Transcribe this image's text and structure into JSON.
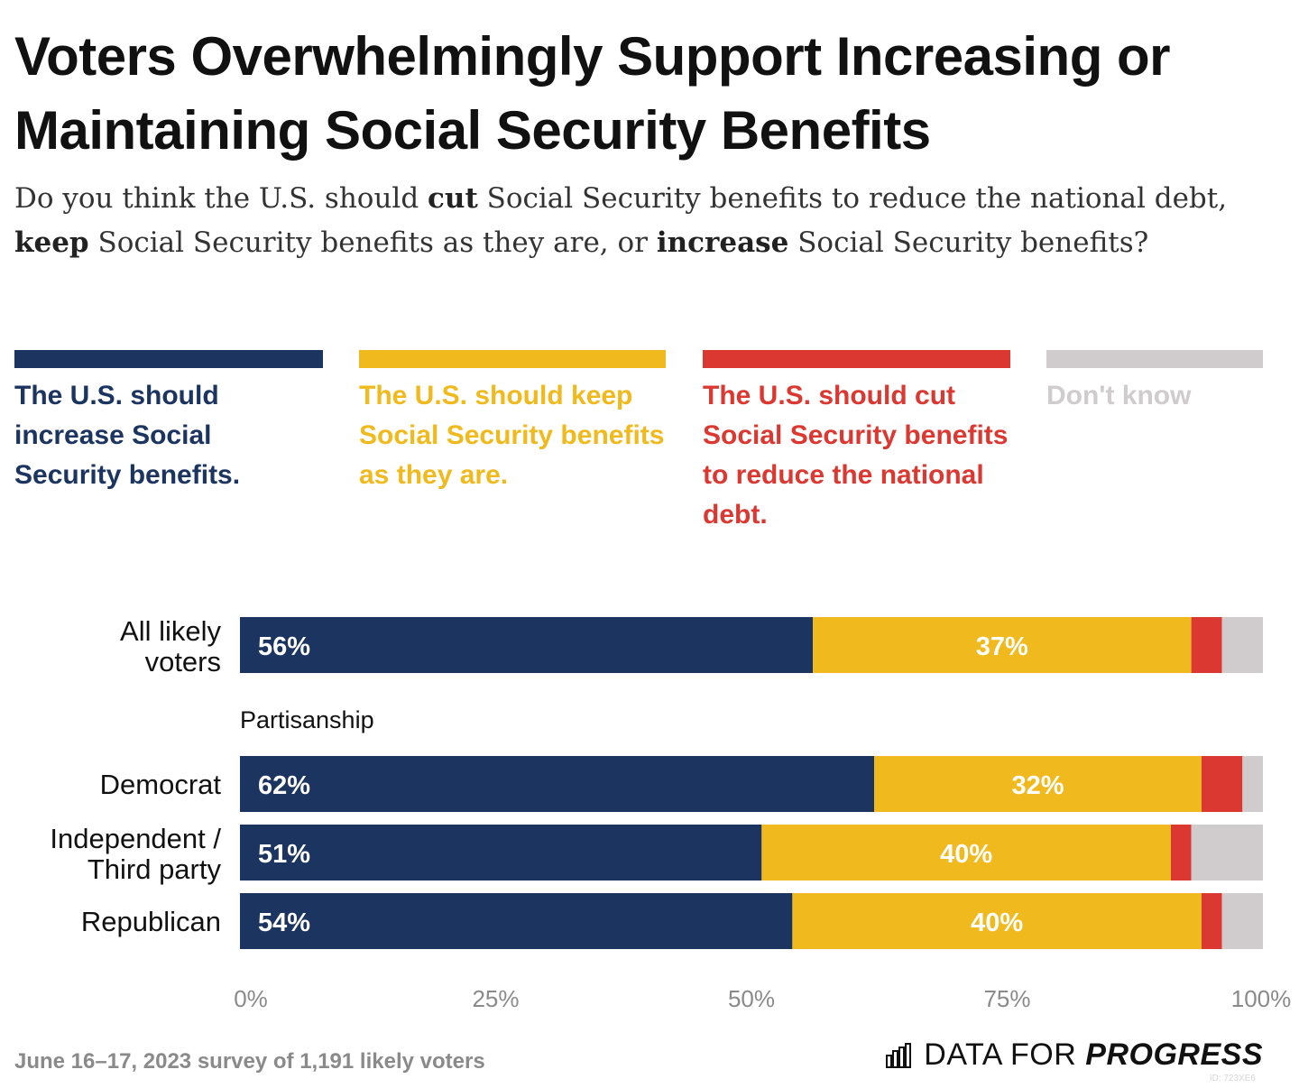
{
  "title": "Voters Overwhelmingly Support Increasing or Maintaining Social Security Benefits",
  "question": {
    "part1": "Do you think the U.S. should ",
    "bold1": "cut",
    "part2": " Social Security benefits to reduce the national debt, ",
    "bold2": "keep",
    "part3": " Social Security benefits as they are, or ",
    "bold3": "increase",
    "part4": " Social Security benefits?"
  },
  "legend": [
    {
      "label": "The U.S. should increase Social Security benefits.",
      "color": "#1c3560"
    },
    {
      "label": "The U.S. should keep Social Security benefits as they are.",
      "color": "#f0ba1e"
    },
    {
      "label": "The U.S. should cut Social Security benefits to reduce the national debt.",
      "color": "#dc3832"
    },
    {
      "label": "Don't know",
      "color": "#d0ccce"
    }
  ],
  "chart_data": {
    "type": "bar",
    "orientation": "horizontal",
    "stacked": true,
    "xlim": [
      0,
      100
    ],
    "x_ticks": [
      "0%",
      "25%",
      "50%",
      "75%",
      "100%"
    ],
    "group_label": "Partisanship",
    "categories": [
      "All likely voters",
      "Democrat",
      "Independent / Third party",
      "Republican"
    ],
    "series": [
      {
        "name": "The U.S. should increase Social Security benefits.",
        "color": "#1c3560",
        "values": [
          56,
          62,
          51,
          54
        ],
        "labels": [
          "56%",
          "62%",
          "51%",
          "54%"
        ]
      },
      {
        "name": "The U.S. should keep Social Security benefits as they are.",
        "color": "#f0ba1e",
        "values": [
          37,
          32,
          40,
          40
        ],
        "labels": [
          "37%",
          "32%",
          "40%",
          "40%"
        ]
      },
      {
        "name": "The U.S. should cut Social Security benefits to reduce the national debt.",
        "color": "#dc3832",
        "values": [
          3,
          4,
          2,
          2
        ],
        "labels": [
          "",
          "",
          "",
          ""
        ]
      },
      {
        "name": "Don't know",
        "color": "#d0ccce",
        "values": [
          4,
          2,
          7,
          4
        ],
        "labels": [
          "",
          "",
          "",
          ""
        ]
      }
    ]
  },
  "footer": {
    "note": "June 16–17, 2023 survey of 1,191 likely voters",
    "brand_a": "DATA FOR",
    "brand_b": "PROGRESS",
    "id": "ID: 723XE6"
  }
}
